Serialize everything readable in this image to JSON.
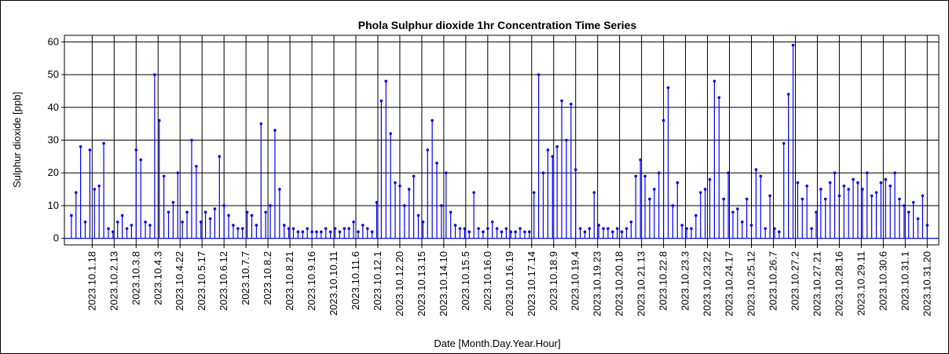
{
  "chart_data": {
    "type": "stem",
    "title": "Phola Sulphur dioxide  1hr Concentration Time Series",
    "xlabel": "Date [Month.Day.Year.Hour]",
    "ylabel": "Sulphur dioxide [ppb]",
    "color": "#0000ff",
    "grid": true,
    "ylim": [
      -2,
      62
    ],
    "yticks": [
      0,
      10,
      20,
      30,
      40,
      50,
      60
    ],
    "xlim": [
      "2023.9.30.18",
      "2023.11.1.6"
    ],
    "xticks": [
      "2023.10.1.18",
      "2023.10.2.13",
      "2023.10.3.8",
      "2023.10.4.3",
      "2023.10.4.22",
      "2023.10.5.17",
      "2023.10.6.12",
      "2023.10.7.7",
      "2023.10.8.2",
      "2023.10.8.21",
      "2023.10.9.16",
      "2023.10.10.11",
      "2023.10.11.6",
      "2023.10.12.1",
      "2023.10.12.20",
      "2023.10.13.15",
      "2023.10.14.10",
      "2023.10.15.5",
      "2023.10.16.0",
      "2023.10.16.19",
      "2023.10.17.14",
      "2023.10.18.9",
      "2023.10.19.4",
      "2023.10.19.23",
      "2023.10.20.18",
      "2023.10.21.13",
      "2023.10.22.8",
      "2023.10.23.3",
      "2023.10.23.22",
      "2023.10.24.17",
      "2023.10.25.12",
      "2023.10.26.7",
      "2023.10.27.2",
      "2023.10.27.21",
      "2023.10.28.16",
      "2023.10.29.11",
      "2023.10.30.6",
      "2023.10.31.1",
      "2023.10.31.20"
    ],
    "x": [
      "2023.10.1.0",
      "2023.10.1.4",
      "2023.10.1.8",
      "2023.10.1.12",
      "2023.10.1.16",
      "2023.10.1.20",
      "2023.10.2.0",
      "2023.10.2.4",
      "2023.10.2.8",
      "2023.10.2.12",
      "2023.10.2.16",
      "2023.10.2.20",
      "2023.10.3.0",
      "2023.10.3.4",
      "2023.10.3.8",
      "2023.10.3.12",
      "2023.10.3.16",
      "2023.10.3.20",
      "2023.10.4.0",
      "2023.10.4.4",
      "2023.10.4.8",
      "2023.10.4.12",
      "2023.10.4.16",
      "2023.10.4.20",
      "2023.10.5.0",
      "2023.10.5.4",
      "2023.10.5.8",
      "2023.10.5.12",
      "2023.10.5.16",
      "2023.10.5.20",
      "2023.10.6.0",
      "2023.10.6.4",
      "2023.10.6.8",
      "2023.10.6.12",
      "2023.10.6.16",
      "2023.10.6.20",
      "2023.10.7.0",
      "2023.10.7.4",
      "2023.10.7.8",
      "2023.10.7.12",
      "2023.10.7.16",
      "2023.10.7.20",
      "2023.10.8.0",
      "2023.10.8.4",
      "2023.10.8.8",
      "2023.10.8.12",
      "2023.10.8.16",
      "2023.10.8.20",
      "2023.10.9.0",
      "2023.10.9.4",
      "2023.10.9.8",
      "2023.10.9.12",
      "2023.10.9.16",
      "2023.10.9.20",
      "2023.10.10.0",
      "2023.10.10.4",
      "2023.10.10.8",
      "2023.10.10.12",
      "2023.10.10.16",
      "2023.10.10.20",
      "2023.10.11.0",
      "2023.10.11.4",
      "2023.10.11.8",
      "2023.10.11.12",
      "2023.10.11.16",
      "2023.10.11.20",
      "2023.10.12.0",
      "2023.10.12.4",
      "2023.10.12.8",
      "2023.10.12.12",
      "2023.10.12.16",
      "2023.10.12.20",
      "2023.10.13.0",
      "2023.10.13.4",
      "2023.10.13.8",
      "2023.10.13.12",
      "2023.10.13.16",
      "2023.10.13.20",
      "2023.10.14.0",
      "2023.10.14.4",
      "2023.10.14.8",
      "2023.10.14.12",
      "2023.10.14.16",
      "2023.10.14.20",
      "2023.10.15.0",
      "2023.10.15.4",
      "2023.10.15.8",
      "2023.10.15.12",
      "2023.10.15.16",
      "2023.10.15.20",
      "2023.10.16.0",
      "2023.10.16.4",
      "2023.10.16.8",
      "2023.10.16.12",
      "2023.10.16.16",
      "2023.10.16.20",
      "2023.10.17.0",
      "2023.10.17.4",
      "2023.10.17.8",
      "2023.10.17.12",
      "2023.10.17.16",
      "2023.10.17.20",
      "2023.10.18.0",
      "2023.10.18.4",
      "2023.10.18.8",
      "2023.10.18.12",
      "2023.10.18.16",
      "2023.10.18.20",
      "2023.10.19.0",
      "2023.10.19.4",
      "2023.10.19.8",
      "2023.10.19.12",
      "2023.10.19.16",
      "2023.10.19.20",
      "2023.10.20.0",
      "2023.10.20.4",
      "2023.10.20.8",
      "2023.10.20.12",
      "2023.10.20.16",
      "2023.10.20.20",
      "2023.10.21.0",
      "2023.10.21.4",
      "2023.10.21.8",
      "2023.10.21.12",
      "2023.10.21.16",
      "2023.10.21.20",
      "2023.10.22.0",
      "2023.10.22.4",
      "2023.10.22.8",
      "2023.10.22.12",
      "2023.10.22.16",
      "2023.10.22.20",
      "2023.10.23.0",
      "2023.10.23.4",
      "2023.10.23.8",
      "2023.10.23.12",
      "2023.10.23.16",
      "2023.10.23.20",
      "2023.10.24.0",
      "2023.10.24.4",
      "2023.10.24.8",
      "2023.10.24.12",
      "2023.10.24.16",
      "2023.10.24.20",
      "2023.10.25.0",
      "2023.10.25.4",
      "2023.10.25.8",
      "2023.10.25.12",
      "2023.10.25.16",
      "2023.10.25.20",
      "2023.10.26.0",
      "2023.10.26.4",
      "2023.10.26.8",
      "2023.10.26.12",
      "2023.10.26.16",
      "2023.10.26.20",
      "2023.10.27.0",
      "2023.10.27.4",
      "2023.10.27.8",
      "2023.10.27.12",
      "2023.10.27.16",
      "2023.10.27.20",
      "2023.10.28.0",
      "2023.10.28.4",
      "2023.10.28.8",
      "2023.10.28.12",
      "2023.10.28.16",
      "2023.10.28.20",
      "2023.10.29.0",
      "2023.10.29.4",
      "2023.10.29.8",
      "2023.10.29.12",
      "2023.10.29.16",
      "2023.10.29.20",
      "2023.10.30.0",
      "2023.10.30.4",
      "2023.10.30.8",
      "2023.10.30.12",
      "2023.10.30.16",
      "2023.10.30.20",
      "2023.10.31.0",
      "2023.10.31.4",
      "2023.10.31.8",
      "2023.10.31.12",
      "2023.10.31.16",
      "2023.10.31.20"
    ],
    "values": [
      7,
      14,
      28,
      5,
      27,
      15,
      16,
      29,
      3,
      2,
      5,
      7,
      3,
      4,
      27,
      24,
      5,
      4,
      50,
      36,
      19,
      8,
      11,
      20,
      5,
      8,
      30,
      22,
      5,
      8,
      6,
      9,
      25,
      10,
      7,
      4,
      3,
      3,
      8,
      7,
      4,
      35,
      8,
      10,
      33,
      15,
      4,
      3,
      3,
      2,
      2,
      3,
      2,
      2,
      2,
      3,
      2,
      3,
      2,
      3,
      3,
      5,
      2,
      4,
      3,
      2,
      11,
      42,
      48,
      32,
      17,
      16,
      10,
      15,
      19,
      7,
      5,
      27,
      36,
      23,
      10,
      20,
      8,
      4,
      3,
      3,
      2,
      14,
      3,
      2,
      3,
      5,
      3,
      2,
      3,
      2,
      2,
      3,
      2,
      2,
      14,
      50,
      20,
      27,
      25,
      28,
      42,
      30,
      41,
      21,
      3,
      2,
      3,
      14,
      4,
      3,
      3,
      2,
      3,
      2,
      3,
      5,
      19,
      24,
      19,
      12,
      15,
      20,
      36,
      46,
      10,
      17,
      4,
      3,
      3,
      7,
      14,
      15,
      18,
      48,
      43,
      12,
      20,
      8,
      9,
      5,
      12,
      4,
      21,
      19,
      3,
      13,
      3,
      2,
      29,
      44,
      59,
      17,
      12,
      16,
      3,
      8,
      15,
      12,
      17,
      20,
      13,
      16,
      15,
      18,
      17,
      15,
      20,
      13,
      14,
      17,
      18,
      16,
      20,
      12,
      10,
      8,
      11,
      6,
      13,
      4
    ]
  }
}
